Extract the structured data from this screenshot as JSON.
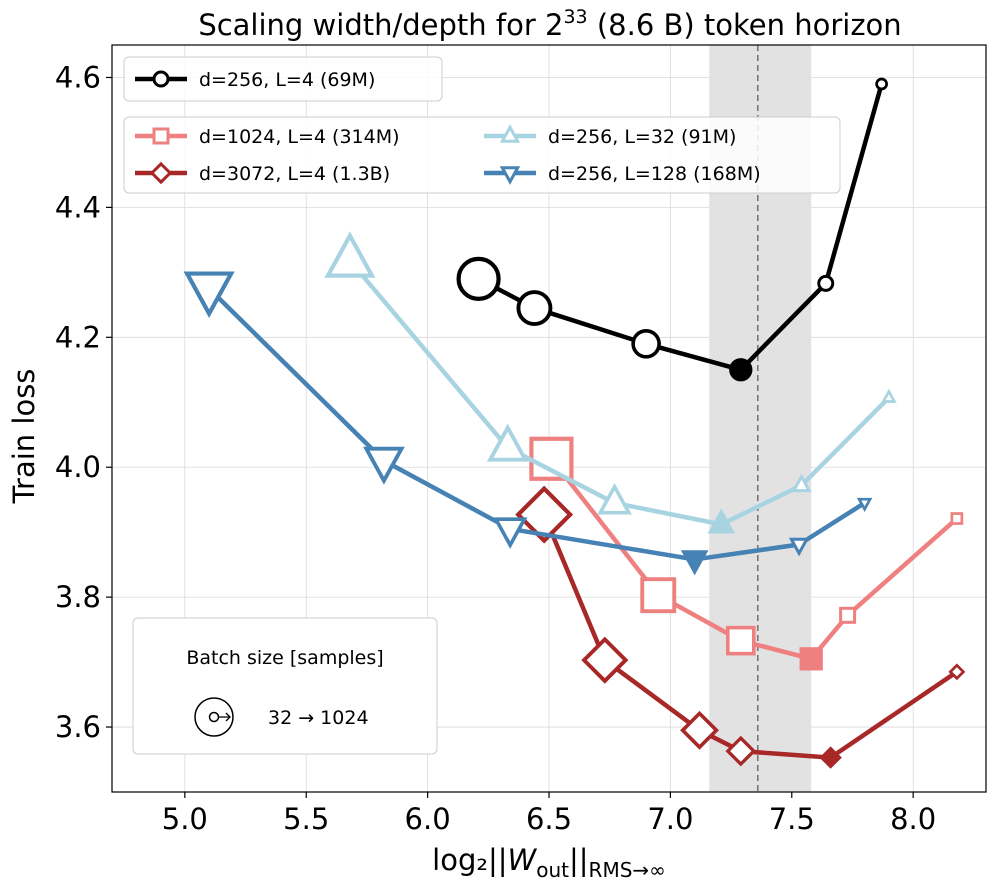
{
  "chart_data": {
    "type": "line",
    "title": "Scaling width/depth for 2^33 (8.6 B) token horizon",
    "title_parts": {
      "prefix": "Scaling width/depth for 2",
      "exponent": "33",
      "suffix": " (8.6 B) token horizon"
    },
    "xlabel": "log₂||W_out||_RMS→∞",
    "xlabel_parts": {
      "prefix": "log₂||",
      "var": "W",
      "var_sub": "out",
      "mid": "||",
      "sub": "RMS→∞"
    },
    "ylabel": "Train loss",
    "xlim": [
      4.7,
      8.3
    ],
    "ylim": [
      3.5,
      4.65
    ],
    "xticks": [
      "5.0",
      "5.5",
      "6.0",
      "6.5",
      "7.0",
      "7.5",
      "8.0"
    ],
    "yticks": [
      "3.6",
      "3.8",
      "4.0",
      "4.2",
      "4.4",
      "4.6"
    ],
    "grid": true,
    "shaded_band": [
      7.16,
      7.58
    ],
    "vline": 7.36,
    "series": [
      {
        "name": "d=256, L=4 (69M)",
        "color": "#000000",
        "marker": "circle",
        "x": [
          6.21,
          6.44,
          6.9,
          7.29,
          7.64,
          7.87
        ],
        "y": [
          4.29,
          4.245,
          4.19,
          4.15,
          4.283,
          4.59
        ],
        "optimum_index": 3
      },
      {
        "name": "d=1024, L=4 (314M)",
        "color": "#ef8080",
        "marker": "square",
        "x": [
          6.51,
          6.95,
          7.29,
          7.58,
          7.73,
          8.18
        ],
        "y": [
          4.013,
          3.803,
          3.733,
          3.705,
          3.772,
          3.921
        ],
        "optimum_index": 3
      },
      {
        "name": "d=3072, L=4 (1.3B)",
        "color": "#a82828",
        "marker": "diamond",
        "x": [
          6.48,
          6.73,
          7.12,
          7.29,
          7.66,
          8.18
        ],
        "y": [
          3.927,
          3.703,
          3.595,
          3.563,
          3.553,
          3.685
        ],
        "optimum_index": 4
      },
      {
        "name": "d=256, L=32 (91M)",
        "color": "#a8d4e2",
        "marker": "triangle-up",
        "x": [
          5.68,
          6.33,
          6.77,
          7.21,
          7.54,
          7.9
        ],
        "y": [
          4.318,
          4.03,
          3.945,
          3.912,
          3.972,
          4.107
        ],
        "optimum_index": 3
      },
      {
        "name": "d=256, L=128 (168M)",
        "color": "#4682b4",
        "marker": "triangle-down",
        "x": [
          5.1,
          5.82,
          6.34,
          7.1,
          7.53,
          7.8
        ],
        "y": [
          4.275,
          4.01,
          3.905,
          3.858,
          3.881,
          3.945
        ],
        "optimum_index": 3
      }
    ],
    "legend_top": "upper-left",
    "legend_main_columns": 2,
    "inset": {
      "title": "Batch size [samples]",
      "range_label": "32 → 1024"
    }
  }
}
